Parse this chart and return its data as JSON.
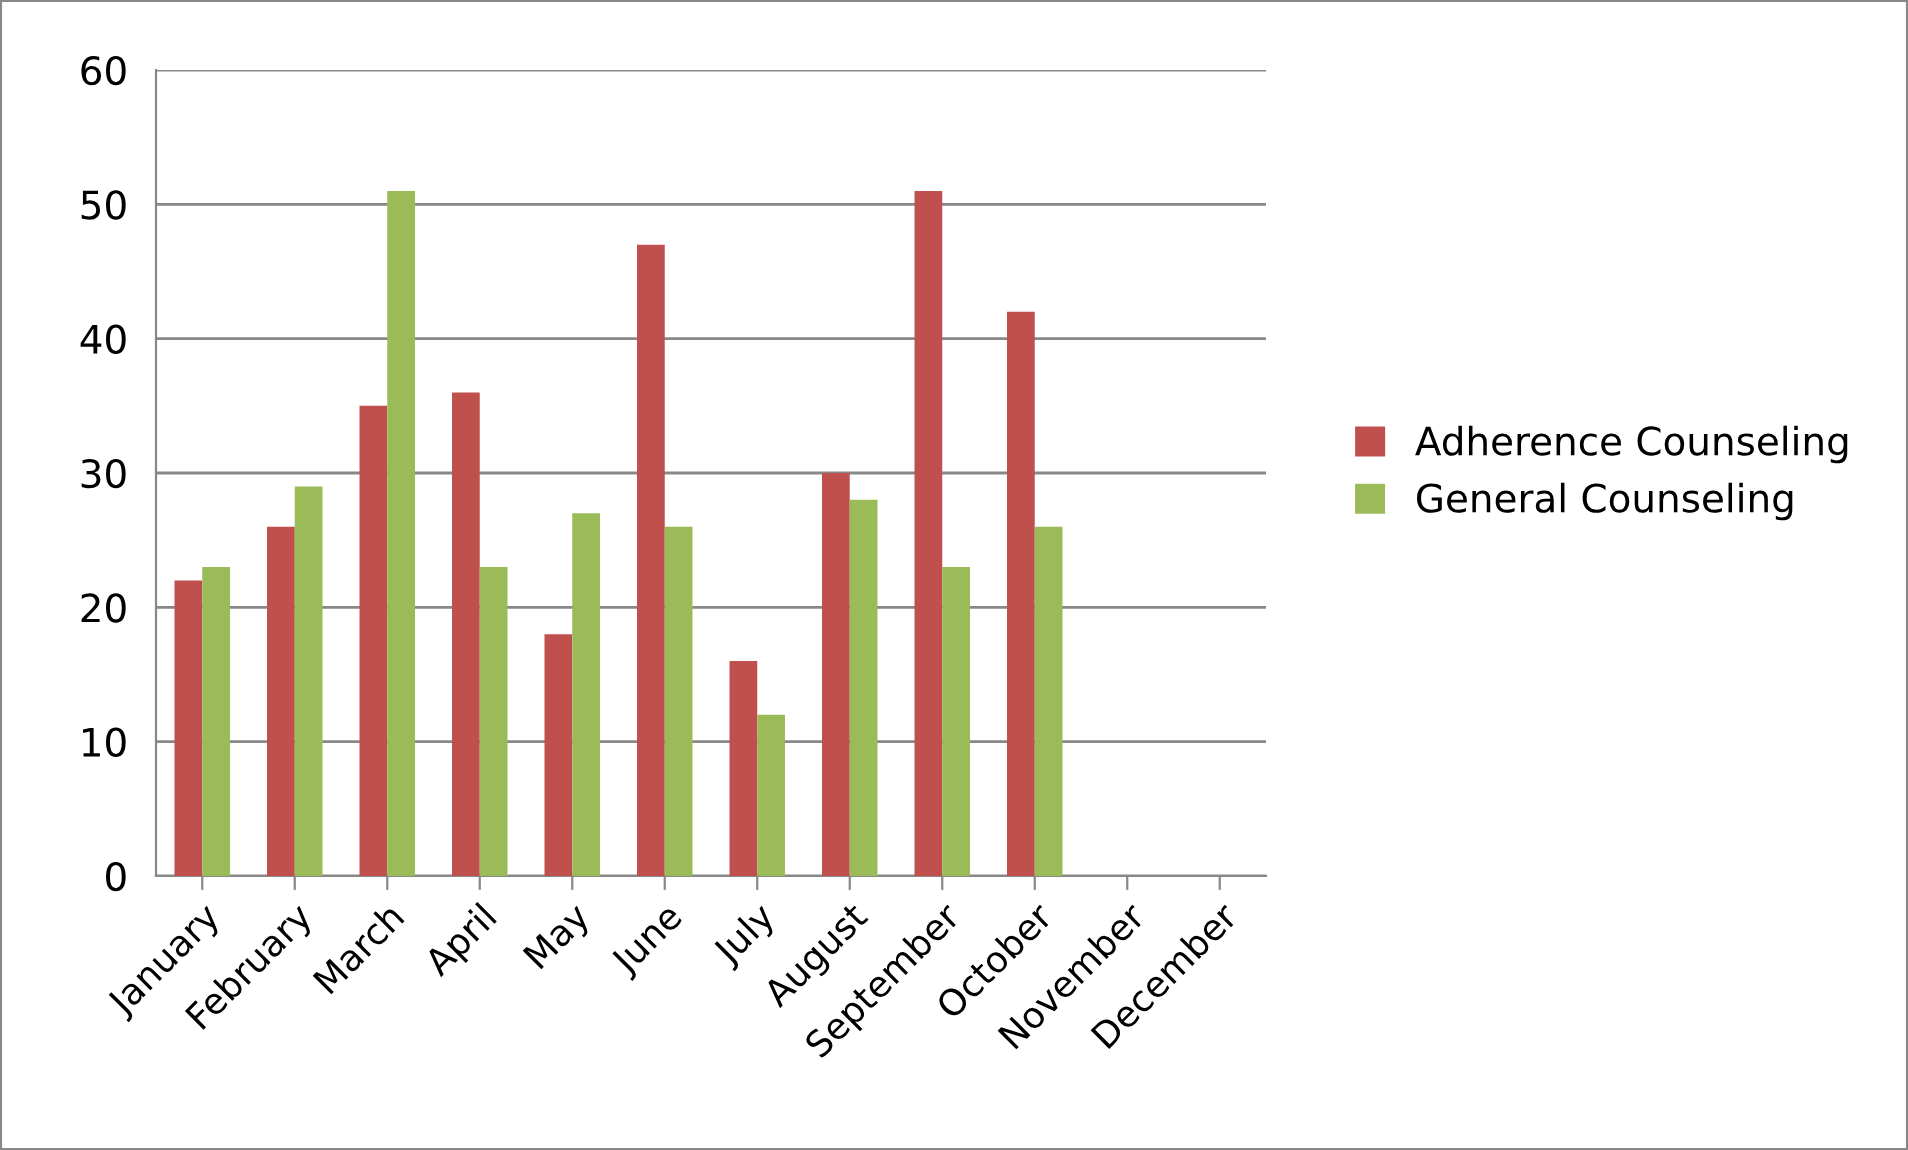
{
  "chart_data": {
    "type": "bar",
    "categories": [
      "January",
      "February",
      "March",
      "April",
      "May",
      "June",
      "July",
      "August",
      "September",
      "October",
      "November",
      "December"
    ],
    "series": [
      {
        "name": "Adherence Counseling",
        "color": "#c0504d",
        "values": [
          22,
          26,
          35,
          36,
          18,
          47,
          16,
          30,
          51,
          42,
          null,
          null
        ]
      },
      {
        "name": "General Counseling",
        "color": "#9bbb59",
        "values": [
          23,
          29,
          51,
          23,
          27,
          26,
          12,
          28,
          23,
          26,
          null,
          null
        ]
      }
    ],
    "ylim": [
      0,
      60
    ],
    "yticks": [
      0,
      10,
      20,
      30,
      40,
      50,
      60
    ],
    "grid": "y",
    "legend": "right"
  }
}
